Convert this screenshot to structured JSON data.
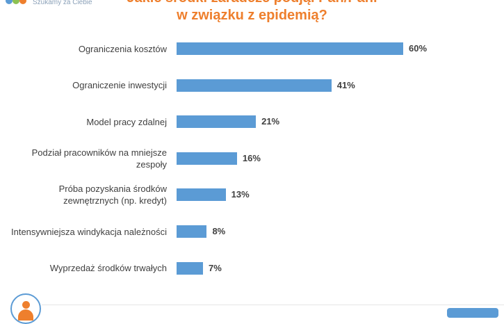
{
  "header": {
    "tagline": "Szukamy za Ciebie",
    "brand_colors": [
      "#5b9bd5",
      "#8cc152",
      "#ee7f2d"
    ],
    "title_line1": "Jakie środki zaradcze podjął Pan/Pani",
    "title_line2": "w związku z epidemią?"
  },
  "chart_data": {
    "type": "bar",
    "orientation": "horizontal",
    "title": "Jakie środki zaradcze podjął Pan/Pani w związku z epidemią?",
    "categories": [
      [
        "Ograniczenia kosztów"
      ],
      [
        "Ograniczenie inwestycji"
      ],
      [
        "Model pracy zdalnej"
      ],
      [
        "Podział pracowników na mniejsze",
        "zespoły"
      ],
      [
        "Próba pozyskania środków",
        "zewnętrznych (np. kredyt)"
      ],
      [
        "Intensywniejsza windykacja należności"
      ],
      [
        "Wyprzedaż środków trwałych"
      ]
    ],
    "values": [
      60,
      41,
      21,
      16,
      13,
      8,
      7
    ],
    "value_labels": [
      "60%",
      "41%",
      "21%",
      "16%",
      "13%",
      "8%",
      "7%"
    ],
    "unit": "%",
    "xlim": [
      0,
      60
    ],
    "grid": false,
    "legend": "none",
    "bar_color": "#5b9bd5"
  },
  "footer": {
    "avatar_icon": "person-icon"
  }
}
